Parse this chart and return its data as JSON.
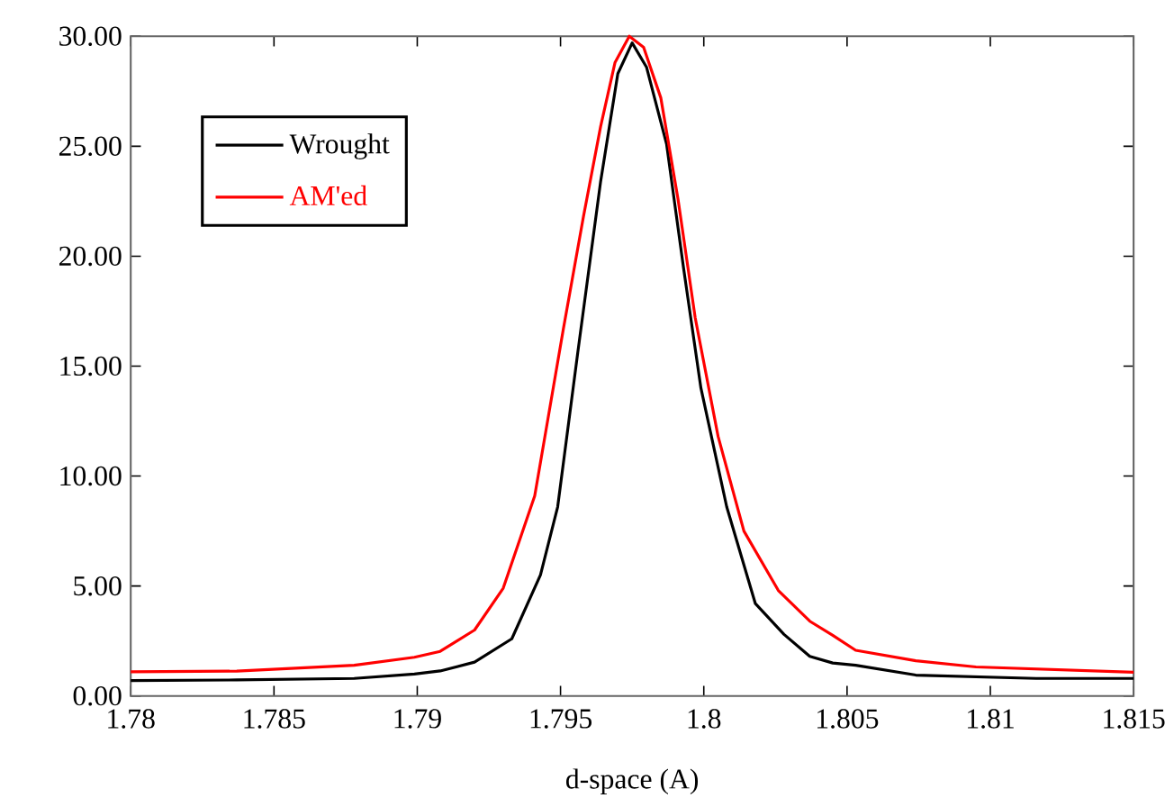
{
  "chart_data": {
    "type": "line",
    "xlabel": "d-space (A)",
    "xlim": [
      1.78,
      1.815
    ],
    "ylim": [
      0,
      30
    ],
    "xticks": [
      1.78,
      1.785,
      1.79,
      1.795,
      1.8,
      1.805,
      1.81,
      1.815
    ],
    "yticks": [
      {
        "value": 0,
        "label": "0.00"
      },
      {
        "value": 5,
        "label": "5.00"
      },
      {
        "value": 10,
        "label": "10.00"
      },
      {
        "value": 15,
        "label": "15.00"
      },
      {
        "value": 20,
        "label": "20.00"
      },
      {
        "value": 25,
        "label": "25.00"
      },
      {
        "value": 30,
        "label": "30.00"
      }
    ],
    "legend": "top left",
    "grid": false,
    "marker": "none",
    "line_style": "solid",
    "series": [
      {
        "name": "Wrought",
        "color": "#000000",
        "x": [
          1.78,
          1.7837,
          1.7878,
          1.7899,
          1.7908,
          1.792,
          1.7933,
          1.7943,
          1.7949,
          1.7956,
          1.7964,
          1.797,
          1.7975,
          1.798,
          1.7987,
          1.7993,
          1.7999,
          1.8008,
          1.8018,
          1.8028,
          1.8037,
          1.8045,
          1.8053,
          1.8074,
          1.8116,
          1.815
        ],
        "values": [
          0.7,
          0.73,
          0.8,
          1.0,
          1.14,
          1.54,
          2.6,
          5.5,
          8.6,
          15.6,
          23.4,
          28.3,
          29.7,
          28.6,
          25.1,
          19.4,
          14.0,
          8.6,
          4.2,
          2.8,
          1.8,
          1.5,
          1.4,
          0.95,
          0.8,
          0.8
        ]
      },
      {
        "name": "AM'ed",
        "color": "#ff0000",
        "x": [
          1.78,
          1.7837,
          1.7878,
          1.7899,
          1.7908,
          1.792,
          1.793,
          1.7941,
          1.7951,
          1.7958,
          1.7964,
          1.7969,
          1.7974,
          1.7979,
          1.7985,
          1.7991,
          1.7997,
          1.8005,
          1.8014,
          1.8026,
          1.8037,
          1.8045,
          1.8053,
          1.8074,
          1.8095,
          1.815
        ],
        "values": [
          1.1,
          1.13,
          1.4,
          1.76,
          2.03,
          3.0,
          4.9,
          9.1,
          16.7,
          21.8,
          25.9,
          28.8,
          30.0,
          29.5,
          27.2,
          22.6,
          17.2,
          11.8,
          7.5,
          4.8,
          3.4,
          2.76,
          2.08,
          1.6,
          1.32,
          1.08
        ]
      }
    ]
  }
}
